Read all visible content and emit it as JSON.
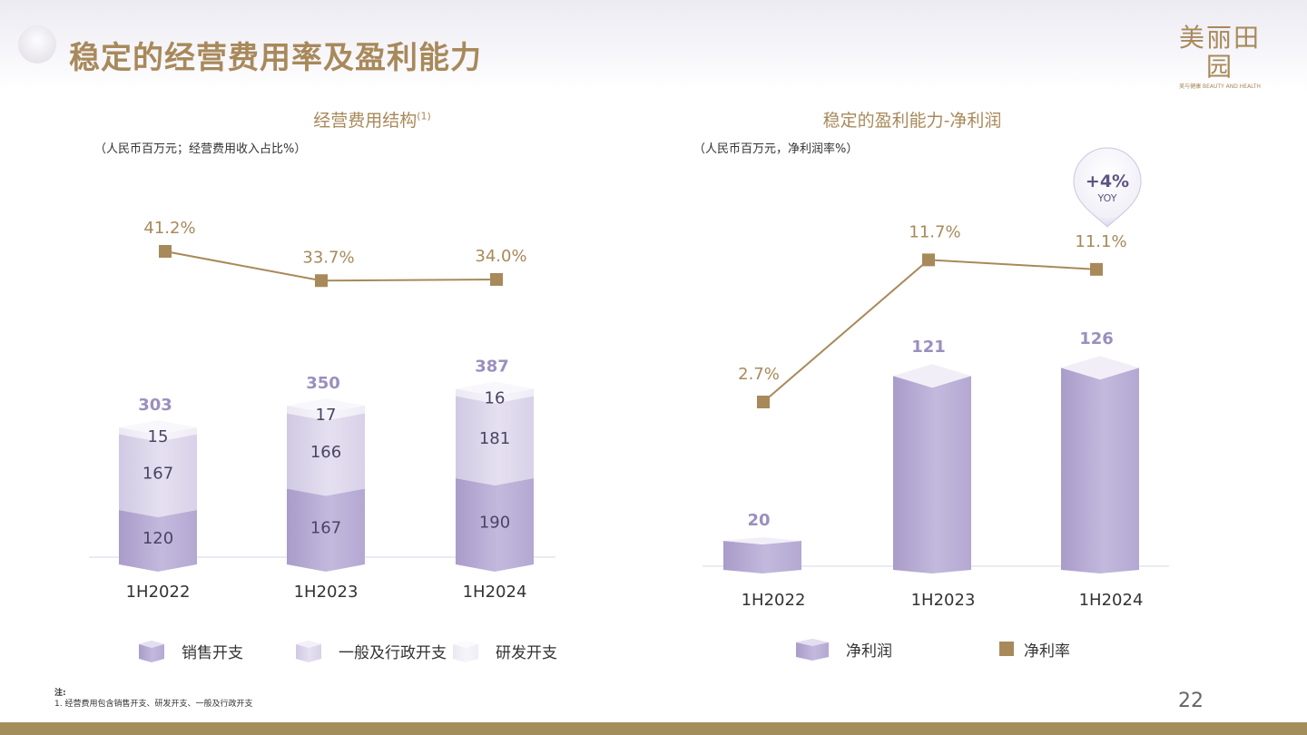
{
  "page": {
    "title": "稳定的经营费用率及盈利能力",
    "brand": {
      "name": "美丽田园",
      "sub": "美与健康 BEAUTY AND HEALTH"
    },
    "page_number": "22",
    "footnote": {
      "label": "注:",
      "items": [
        "1.   经营费用包含销售开支、研发开支、一般及行政开支"
      ]
    }
  },
  "left_panel": {
    "title": "经营费用结构",
    "title_sup": "(1)",
    "unit": "（人民币百万元；经营费用收入占比%）"
  },
  "right_panel": {
    "title": "稳定的盈利能力-净利润",
    "unit": "（人民币百万元，净利润率%）",
    "badge": {
      "value": "+4%",
      "label": "YOY"
    }
  },
  "colors": {
    "gold": "#a8895a",
    "bar_dark": "#b9aed6",
    "bar_mid": "#dcd6eb",
    "bar_light": "#f1eff7",
    "total_label": "#9b8fbe"
  },
  "chart_data": [
    {
      "type": "bar",
      "stacked": true,
      "categories": [
        "1H2022",
        "1H2023",
        "1H2024"
      ],
      "series": [
        {
          "name": "销售开支",
          "values": [
            120,
            167,
            190
          ]
        },
        {
          "name": "一般及行政开支",
          "values": [
            167,
            166,
            181
          ]
        },
        {
          "name": "研发开支",
          "values": [
            15,
            17,
            16
          ]
        }
      ],
      "totals": [
        "303",
        "350",
        "387"
      ],
      "line": {
        "name": "经营费用收入占比",
        "values": [
          41.2,
          33.7,
          34.0
        ],
        "labels": [
          "41.2%",
          "33.7%",
          "34.0%"
        ]
      },
      "legend": [
        "销售开支",
        "一般及行政开支",
        "研发开支"
      ],
      "legend_placement": "bottom"
    },
    {
      "type": "bar",
      "categories": [
        "1H2022",
        "1H2023",
        "1H2024"
      ],
      "series": [
        {
          "name": "净利润",
          "values": [
            20,
            121,
            126
          ]
        }
      ],
      "line": {
        "name": "净利率",
        "values": [
          2.7,
          11.7,
          11.1
        ],
        "labels": [
          "2.7%",
          "11.7%",
          "11.1%"
        ]
      },
      "legend": [
        "净利润",
        "净利率"
      ],
      "legend_placement": "bottom"
    }
  ]
}
